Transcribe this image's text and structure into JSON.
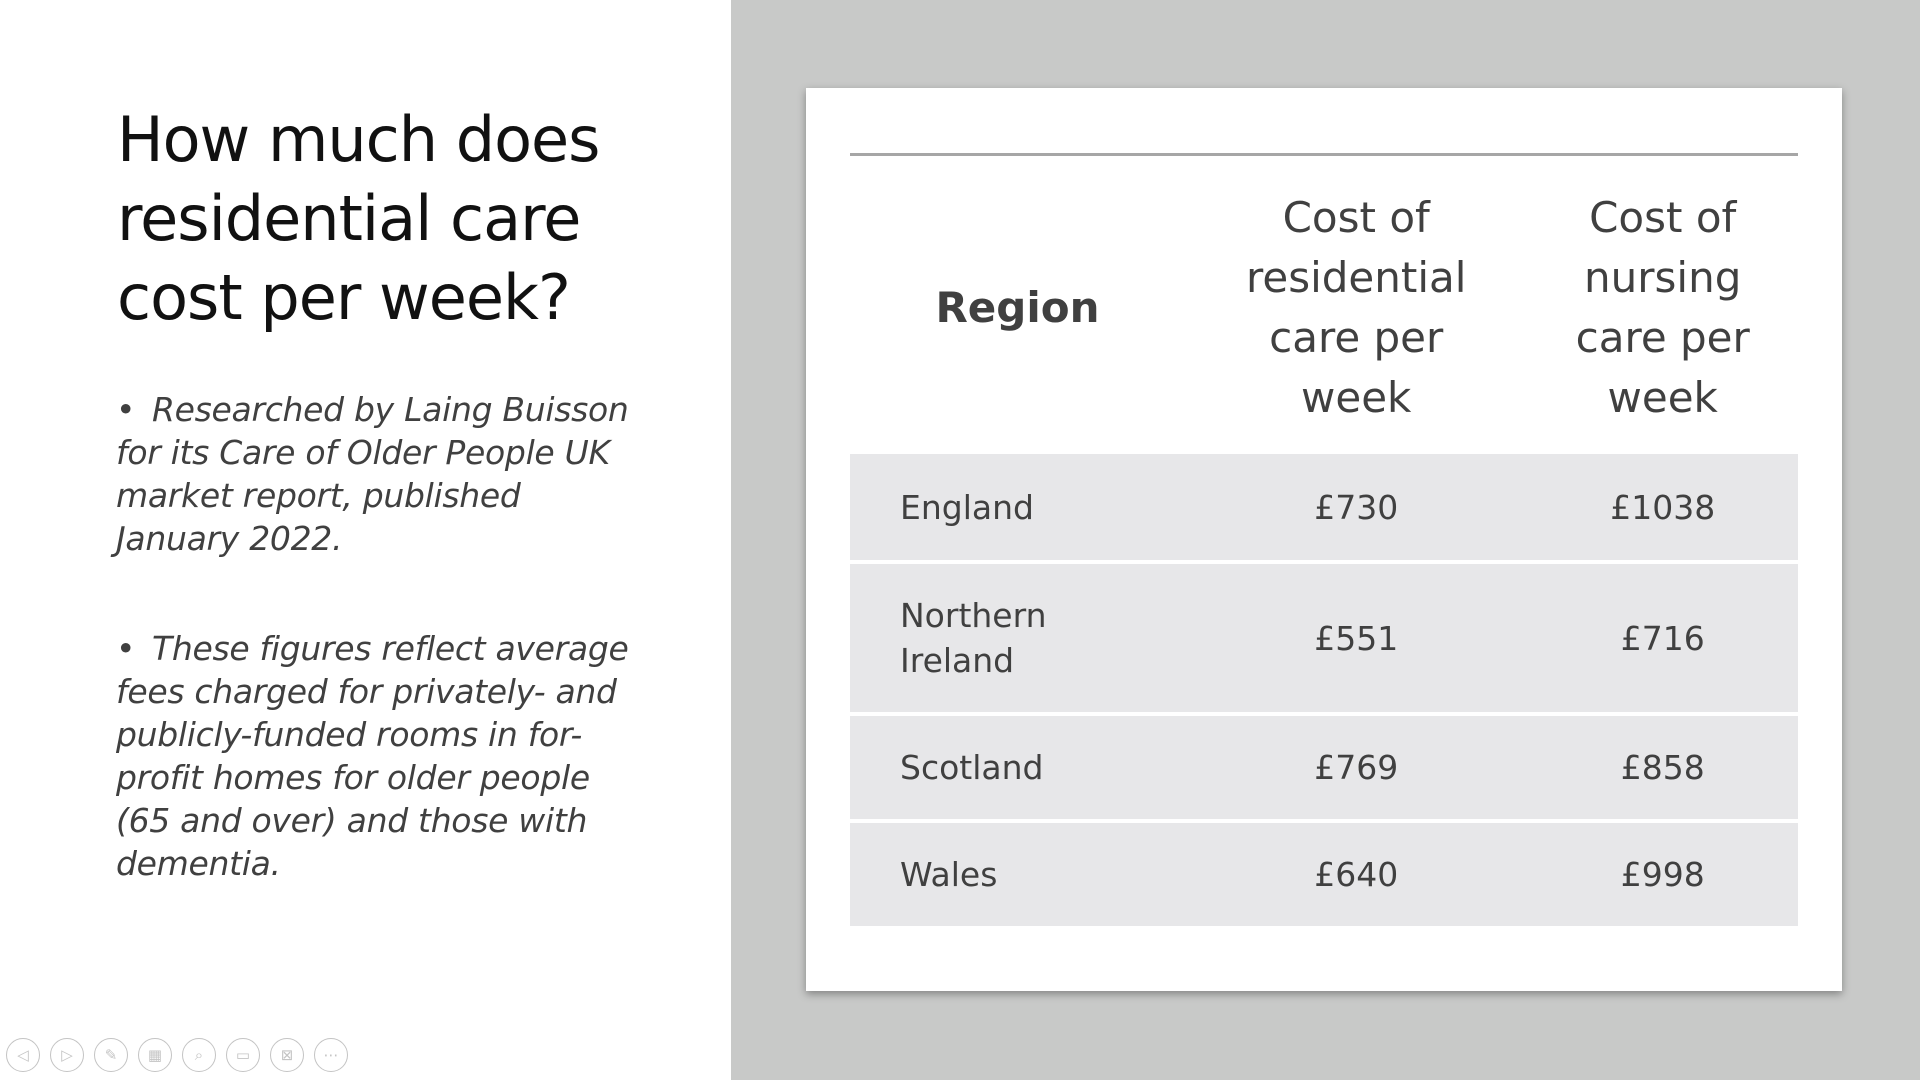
{
  "slide": {
    "title_lines": [
      "How much does",
      "residential care",
      "cost per week?"
    ],
    "bullets": [
      {
        "marker": "•",
        "lines": [
          "Researched by Laing Buisson",
          "for its Care of Older People UK",
          "market report, published",
          "January 2022."
        ]
      },
      {
        "marker": "•",
        "lines": [
          "These figures reflect average",
          "fees charged for privately- and",
          "publicly-funded rooms in for-",
          "profit homes for older people",
          "(65 and over) and those with",
          "dementia."
        ]
      }
    ]
  },
  "table": {
    "headers": {
      "region": "Region",
      "residential_lines": [
        "Cost of",
        "residential",
        "care per",
        "week"
      ],
      "nursing_lines": [
        "Cost of",
        "nursing",
        "care per",
        "week"
      ]
    },
    "rows": [
      {
        "region_lines": [
          "England"
        ],
        "residential": "£730",
        "nursing": "£1038"
      },
      {
        "region_lines": [
          "Northern",
          "Ireland"
        ],
        "residential": "£551",
        "nursing": "£716"
      },
      {
        "region_lines": [
          "Scotland"
        ],
        "residential": "£769",
        "nursing": "£858"
      },
      {
        "region_lines": [
          "Wales"
        ],
        "residential": "£640",
        "nursing": "£998"
      }
    ]
  },
  "toolbar": {
    "buttons": [
      {
        "icon": "previous-slide-icon",
        "glyph": "◁"
      },
      {
        "icon": "next-slide-icon",
        "glyph": "▷"
      },
      {
        "icon": "pen-icon",
        "glyph": "✎"
      },
      {
        "icon": "see-all-slides-icon",
        "glyph": "▦"
      },
      {
        "icon": "zoom-icon",
        "glyph": "⌕"
      },
      {
        "icon": "subtitles-icon",
        "glyph": "▭"
      },
      {
        "icon": "camera-off-icon",
        "glyph": "⊠"
      },
      {
        "icon": "more-options-icon",
        "glyph": "⋯"
      }
    ]
  }
}
